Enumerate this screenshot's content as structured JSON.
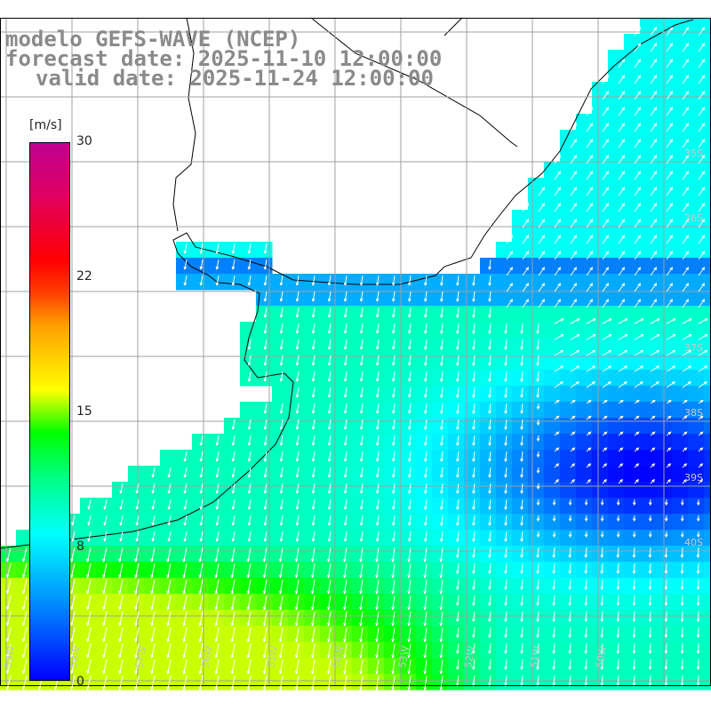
{
  "header": {
    "model": "modelo GEFS-WAVE (NCEP)",
    "forecast_date": "forecast date: 2025-11-10 12:00:00",
    "valid_date": "valid date: 2025-11-24 12:00:00"
  },
  "colorbar": {
    "unit": "[m/s]",
    "ticks": [
      "30",
      "22",
      "15",
      "8",
      "0"
    ],
    "colors": [
      "#0000ff",
      "#0080ff",
      "#00ffff",
      "#00ff80",
      "#00ff00",
      "#ffff00",
      "#ff8000",
      "#ff0000",
      "#c00090"
    ]
  },
  "map": {
    "land_color": "#ffffff",
    "grid_color": "#a0a0a0",
    "lat_labels": [
      "35S",
      "36S",
      "37S",
      "38S",
      "39S",
      "40S"
    ],
    "lon_labels": [
      "59W",
      "58W",
      "57W",
      "56W",
      "55W",
      "54W",
      "53W",
      "52W",
      "51W",
      "50W"
    ],
    "vector_color": "#ffffff"
  }
}
